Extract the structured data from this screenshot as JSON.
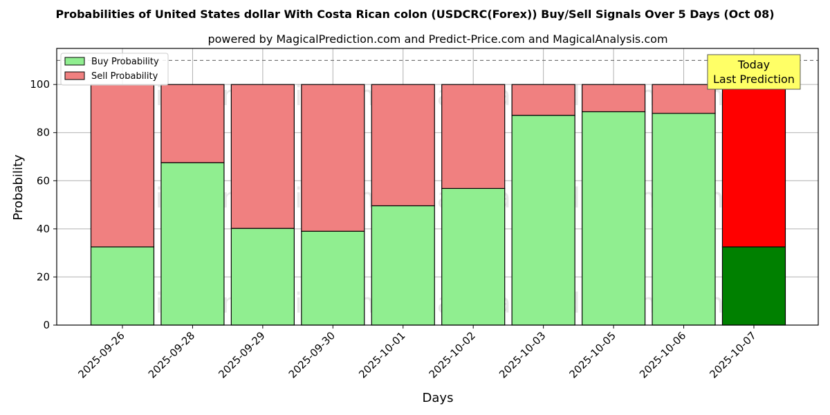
{
  "chart_data": {
    "type": "bar",
    "stacked": true,
    "title": "Probabilities of United States dollar With Costa Rican colon (USDCRC(Forex)) Buy/Sell Signals Over 5 Days (Oct 08)",
    "subtitle": "powered by MagicalPrediction.com and Predict-Price.com and MagicalAnalysis.com",
    "xlabel": "Days",
    "ylabel": "Probability",
    "ylim": [
      0,
      115
    ],
    "yticks": [
      0,
      20,
      40,
      60,
      80,
      100
    ],
    "grid": true,
    "reference_line": 110,
    "legend_position": "top-left",
    "categories": [
      "2025-09-26",
      "2025-09-28",
      "2025-09-29",
      "2025-09-30",
      "2025-10-01",
      "2025-10-02",
      "2025-10-03",
      "2025-10-05",
      "2025-10-06",
      "2025-10-07"
    ],
    "series": [
      {
        "name": "Buy Probability",
        "color": "#90ee90",
        "values": [
          32.5,
          67.5,
          40.2,
          39.0,
          49.6,
          56.8,
          87.2,
          88.7,
          88.0,
          32.5
        ]
      },
      {
        "name": "Sell Probability",
        "color": "#f08080",
        "values": [
          67.5,
          32.5,
          59.8,
          61.0,
          50.4,
          43.2,
          12.8,
          11.3,
          12.0,
          67.5
        ]
      }
    ],
    "highlight": {
      "index": 9,
      "buy_color": "#008000",
      "sell_color": "#ff0000"
    },
    "annotation": {
      "lines": [
        "Today",
        "Last Prediction"
      ],
      "background": "#ffff66"
    },
    "watermarks": [
      "MagicalAnalysis.com",
      "MagicalPrediction.com"
    ]
  }
}
